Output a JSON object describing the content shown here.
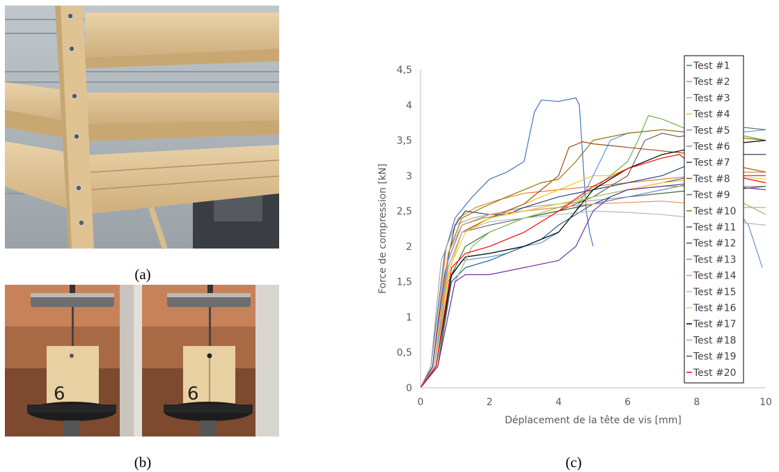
{
  "panels": {
    "a": "(a)",
    "b": "(b)",
    "c": "(c)"
  },
  "photo_b": {
    "specimen_label": "6"
  },
  "chart_data": {
    "type": "line",
    "xlabel": "Déplacement de la tête de vis [mm]",
    "ylabel": "Force de compression [kN]",
    "xlim": [
      0,
      10
    ],
    "ylim": [
      0,
      4.5
    ],
    "xticks": [
      "0",
      "2",
      "4",
      "6",
      "8",
      "10"
    ],
    "yticks": [
      "0",
      "0,5",
      "1",
      "1,5",
      "2",
      "2,5",
      "3",
      "3,5",
      "4",
      "4,5"
    ],
    "grid": false,
    "legend_position": "right",
    "series": [
      {
        "name": "Test #1",
        "color": "#4472C4",
        "x": [
          0.0,
          0.3,
          0.7,
          1.0,
          1.5,
          2.0,
          2.5,
          3.0,
          3.3,
          3.5,
          4.0,
          4.5,
          4.6,
          4.8,
          4.9,
          5.0
        ],
        "y": [
          0.0,
          0.3,
          1.9,
          2.4,
          2.7,
          2.95,
          3.05,
          3.2,
          3.9,
          4.07,
          4.05,
          4.1,
          4.0,
          2.5,
          2.2,
          2.0
        ]
      },
      {
        "name": "Test #2",
        "color": "#ED7D31",
        "x": [
          0.0,
          0.35,
          0.75,
          1.1,
          1.6,
          2.2,
          3.0,
          4.0,
          5.0,
          6.0,
          7.0,
          8.0,
          9.0,
          10.0
        ],
        "y": [
          0.0,
          0.3,
          2.0,
          2.4,
          2.55,
          2.65,
          2.75,
          2.8,
          2.85,
          2.9,
          2.95,
          3.0,
          3.05,
          3.05
        ]
      },
      {
        "name": "Test #3",
        "color": "#A5A5A5",
        "x": [
          0.0,
          0.3,
          0.6,
          1.0,
          1.5,
          2.0,
          3.0,
          4.0,
          5.0,
          6.0,
          7.0,
          8.0,
          9.0,
          10.0
        ],
        "y": [
          0.0,
          0.3,
          1.8,
          2.3,
          2.4,
          2.45,
          2.55,
          2.6,
          2.65,
          2.7,
          2.75,
          2.8,
          2.85,
          2.85
        ]
      },
      {
        "name": "Test #4",
        "color": "#FFC000",
        "x": [
          0.0,
          0.4,
          0.8,
          1.2,
          1.8,
          2.5,
          3.0,
          3.5,
          4.0,
          4.5,
          5.0,
          5.5,
          6.0,
          6.5,
          7.0,
          8.0,
          9.0,
          10.0
        ],
        "y": [
          0.0,
          0.3,
          1.6,
          2.2,
          2.35,
          2.5,
          2.6,
          2.7,
          2.8,
          2.9,
          3.0,
          3.0,
          3.1,
          3.2,
          3.3,
          3.4,
          3.3,
          3.3
        ]
      },
      {
        "name": "Test #5",
        "color": "#5B9BD5",
        "x": [
          0.0,
          0.4,
          0.8,
          1.2,
          2.0,
          2.5,
          3.0,
          3.5,
          4.0,
          4.5,
          5.0,
          5.5,
          6.0,
          7.0,
          8.0,
          9.0,
          10.0
        ],
        "y": [
          0.0,
          0.3,
          1.5,
          1.8,
          1.85,
          1.9,
          2.0,
          2.05,
          2.2,
          2.5,
          3.0,
          3.5,
          3.6,
          3.65,
          3.6,
          3.6,
          3.65
        ]
      },
      {
        "name": "Test #6",
        "color": "#70AD47",
        "x": [
          0.0,
          0.4,
          0.8,
          1.2,
          1.8,
          2.5,
          3.0,
          3.5,
          4.0,
          4.5,
          5.0,
          5.5,
          6.0,
          6.3,
          6.6,
          7.0,
          7.5,
          8.0,
          9.0,
          10.0
        ],
        "y": [
          0.0,
          0.3,
          1.8,
          2.3,
          2.4,
          2.45,
          2.5,
          2.55,
          2.6,
          2.65,
          2.8,
          3.0,
          3.2,
          3.5,
          3.85,
          3.8,
          3.7,
          3.6,
          3.6,
          3.5
        ]
      },
      {
        "name": "Test #7",
        "color": "#264478",
        "x": [
          0.0,
          0.35,
          0.7,
          1.0,
          1.3,
          2.0,
          2.5,
          3.0,
          4.0,
          5.0,
          6.0,
          7.0,
          8.0,
          9.0,
          10.0
        ],
        "y": [
          0.0,
          0.3,
          1.6,
          2.3,
          2.5,
          2.45,
          2.45,
          2.55,
          2.7,
          2.8,
          2.9,
          3.0,
          3.2,
          3.3,
          3.3
        ]
      },
      {
        "name": "Test #8",
        "color": "#9E480E",
        "x": [
          0.0,
          0.4,
          0.8,
          1.2,
          2.0,
          3.0,
          3.5,
          4.0,
          4.3,
          4.7,
          5.0,
          6.0,
          7.0,
          8.0,
          9.0,
          10.0
        ],
        "y": [
          0.0,
          0.3,
          1.7,
          2.2,
          2.4,
          2.6,
          2.8,
          3.0,
          3.4,
          3.48,
          3.45,
          3.4,
          3.35,
          3.3,
          3.15,
          3.05
        ]
      },
      {
        "name": "Test #9",
        "color": "#636363",
        "x": [
          0.0,
          0.4,
          0.8,
          1.2,
          2.0,
          3.0,
          4.0,
          5.0,
          6.0,
          6.5,
          7.0,
          7.5,
          8.0,
          9.0,
          10.0
        ],
        "y": [
          0.0,
          0.3,
          1.7,
          2.2,
          2.3,
          2.4,
          2.5,
          2.7,
          3.0,
          3.5,
          3.6,
          3.55,
          3.6,
          3.7,
          3.65
        ]
      },
      {
        "name": "Test #10",
        "color": "#997300",
        "x": [
          0.0,
          0.4,
          0.8,
          1.2,
          1.8,
          2.5,
          3.0,
          3.5,
          4.0,
          4.5,
          5.0,
          6.0,
          7.0,
          8.0,
          9.0,
          10.0
        ],
        "y": [
          0.0,
          0.3,
          1.9,
          2.4,
          2.55,
          2.7,
          2.8,
          2.9,
          2.95,
          3.2,
          3.5,
          3.6,
          3.65,
          3.6,
          3.55,
          3.5
        ]
      },
      {
        "name": "Test #11",
        "color": "#255E91",
        "x": [
          0.0,
          0.5,
          0.9,
          1.3,
          2.0,
          2.5,
          3.0,
          3.5,
          4.0,
          5.0,
          6.0,
          7.0,
          8.0,
          9.0,
          10.0
        ],
        "y": [
          0.0,
          0.3,
          1.5,
          1.7,
          1.8,
          1.9,
          2.0,
          2.1,
          2.3,
          2.6,
          2.8,
          2.9,
          3.0,
          3.0,
          3.0
        ]
      },
      {
        "name": "Test #12",
        "color": "#43682B",
        "x": [
          0.0,
          0.5,
          0.9,
          1.3,
          2.0,
          3.0,
          4.0,
          5.0,
          6.0,
          7.0,
          8.0,
          9.0,
          10.0
        ],
        "y": [
          0.0,
          0.3,
          1.6,
          2.0,
          2.2,
          2.4,
          2.5,
          2.6,
          2.7,
          2.75,
          2.8,
          2.8,
          2.85
        ]
      },
      {
        "name": "Test #13",
        "color": "#698ED0",
        "x": [
          0.0,
          0.4,
          0.8,
          1.2,
          2.0,
          3.0,
          4.0,
          5.0,
          6.0,
          7.0,
          8.0,
          9.0,
          9.5,
          9.7,
          9.9
        ],
        "y": [
          0.0,
          0.3,
          1.8,
          2.3,
          2.45,
          2.5,
          2.55,
          2.6,
          2.7,
          2.8,
          2.9,
          2.6,
          2.3,
          2.0,
          1.7
        ]
      },
      {
        "name": "Test #14",
        "color": "#F1975A",
        "x": [
          0.0,
          0.4,
          0.8,
          1.2,
          2.0,
          3.0,
          4.0,
          5.0,
          6.0,
          7.0,
          8.0,
          9.0,
          10.0
        ],
        "y": [
          0.0,
          0.3,
          1.9,
          2.3,
          2.45,
          2.5,
          2.55,
          2.6,
          2.62,
          2.64,
          2.6,
          2.55,
          2.55
        ]
      },
      {
        "name": "Test #15",
        "color": "#B7B7B7",
        "x": [
          0.0,
          0.4,
          0.8,
          1.2,
          2.0,
          3.0,
          4.0,
          5.0,
          6.0,
          7.0,
          8.0,
          9.0,
          10.0
        ],
        "y": [
          0.0,
          0.3,
          1.7,
          2.2,
          2.35,
          2.4,
          2.45,
          2.5,
          2.48,
          2.45,
          2.4,
          2.35,
          2.3
        ]
      },
      {
        "name": "Test #16",
        "color": "#FFCD33",
        "x": [
          0.0,
          0.45,
          0.85,
          1.3,
          2.0,
          3.0,
          4.0,
          5.0,
          6.0,
          7.0,
          8.0,
          9.0,
          10.0
        ],
        "y": [
          0.0,
          0.3,
          1.7,
          2.2,
          2.4,
          2.5,
          2.6,
          2.7,
          2.8,
          2.9,
          2.95,
          3.0,
          2.95
        ]
      },
      {
        "name": "Test #17",
        "color": "#000000",
        "x": [
          0.0,
          0.45,
          0.9,
          1.3,
          2.0,
          3.0,
          3.5,
          4.0,
          4.5,
          5.0,
          6.0,
          7.0,
          8.0,
          9.0,
          10.0
        ],
        "y": [
          0.0,
          0.3,
          1.6,
          1.85,
          1.9,
          2.0,
          2.1,
          2.2,
          2.5,
          2.8,
          3.1,
          3.3,
          3.4,
          3.45,
          3.5
        ]
      },
      {
        "name": "Test #18",
        "color": "#8CC168",
        "x": [
          0.0,
          0.5,
          1.0,
          1.5,
          2.0,
          3.0,
          4.0,
          5.0,
          6.0,
          7.0,
          8.0,
          9.0,
          10.0
        ],
        "y": [
          0.0,
          0.3,
          1.5,
          2.0,
          2.2,
          2.4,
          2.55,
          2.7,
          2.8,
          2.85,
          2.85,
          2.7,
          2.45
        ]
      },
      {
        "name": "Test #19",
        "color": "#7030A0",
        "x": [
          0.0,
          0.5,
          1.0,
          1.3,
          2.0,
          3.0,
          4.0,
          4.5,
          5.0,
          5.5,
          6.0,
          7.0,
          8.0,
          9.0,
          10.0
        ],
        "y": [
          0.0,
          0.3,
          1.5,
          1.6,
          1.6,
          1.7,
          1.8,
          2.0,
          2.5,
          2.7,
          2.8,
          2.85,
          2.9,
          2.85,
          2.8
        ]
      },
      {
        "name": "Test #20",
        "color": "#FF0000",
        "x": [
          0.0,
          0.45,
          0.9,
          1.3,
          2.0,
          3.0,
          4.0,
          5.0,
          6.0,
          7.0,
          7.5,
          8.0,
          9.0,
          10.0
        ],
        "y": [
          0.0,
          0.3,
          1.7,
          1.9,
          2.0,
          2.2,
          2.5,
          2.85,
          3.1,
          3.25,
          3.3,
          3.1,
          3.0,
          2.9
        ]
      }
    ]
  }
}
